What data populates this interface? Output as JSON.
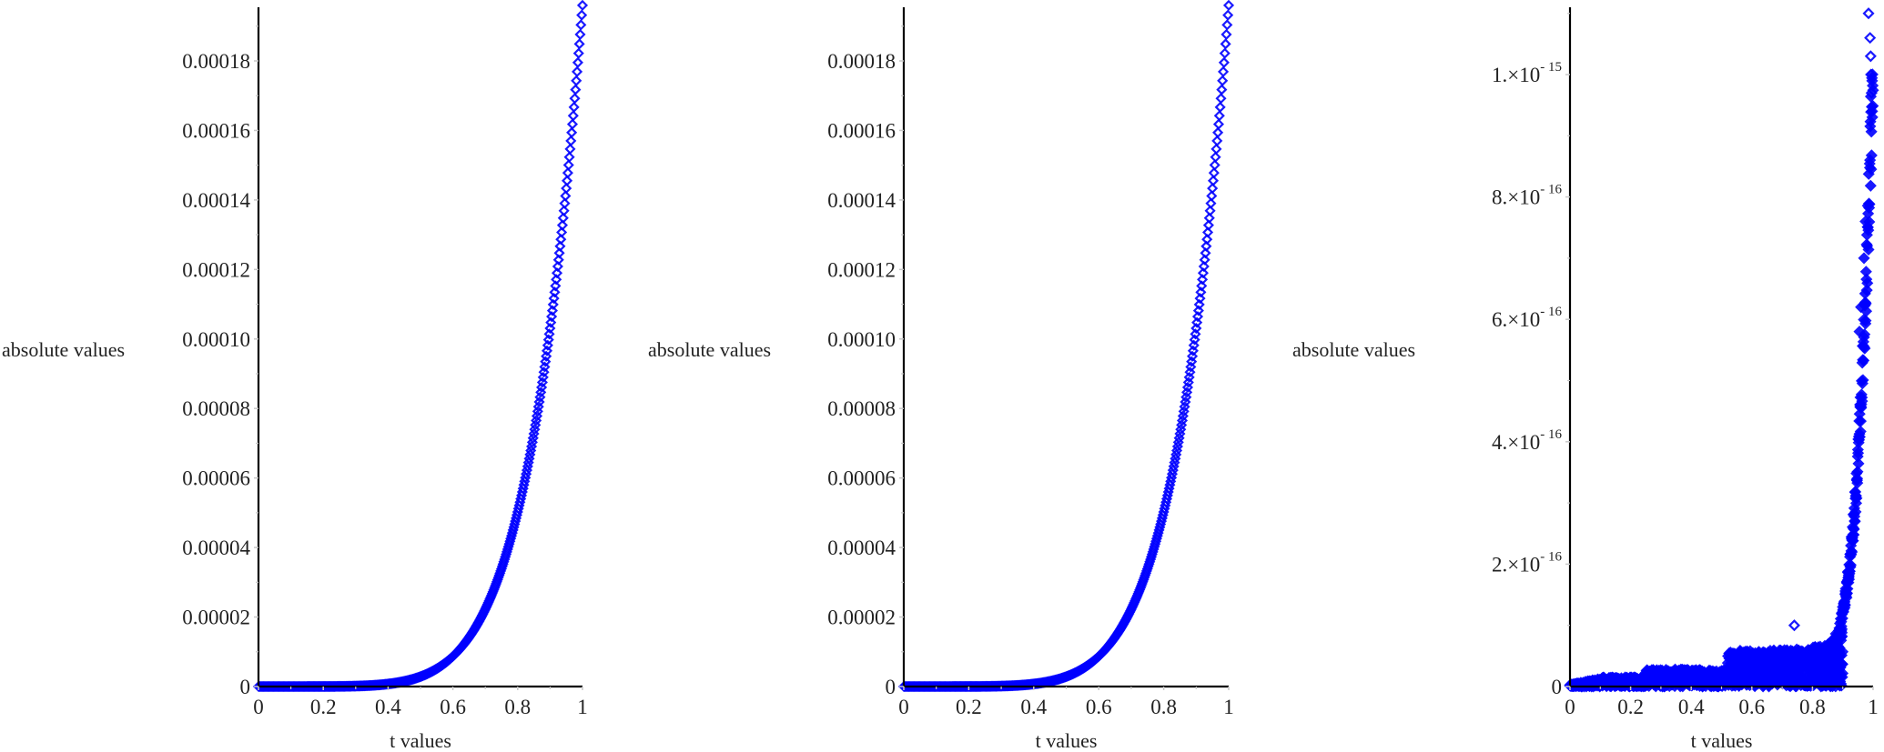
{
  "colors": {
    "marker": "#0000ff",
    "axis": "#000000",
    "minor_tick": "#c8c8c8",
    "text": "#222222"
  },
  "chart_data": [
    {
      "type": "scatter",
      "title": "",
      "xlabel": "t values",
      "ylabel": "absolute values",
      "marker": "diamond-open",
      "xlim": [
        0,
        1
      ],
      "ylim": [
        0,
        0.000196
      ],
      "grid": false,
      "x_ticks": [
        "0",
        "0.2",
        "0.4",
        "0.6",
        "0.8",
        "1"
      ],
      "y_ticks": [
        "0",
        "0.00002",
        "0.00004",
        "0.00006",
        "0.00008",
        "0.00010",
        "0.00012",
        "0.00014",
        "0.00016",
        "0.00018"
      ],
      "series": [
        {
          "name": "absolute values",
          "model": "smooth growth ~ 0.000196 * t^6",
          "x": [
            0,
            0.1,
            0.2,
            0.3,
            0.4,
            0.5,
            0.6,
            0.7,
            0.8,
            0.9,
            1.0
          ],
          "values": [
            0,
            0,
            0,
            1e-07,
            8e-07,
            3e-06,
            9e-06,
            2.3e-05,
            5.1e-05,
            0.000104,
            0.000196
          ]
        }
      ]
    },
    {
      "type": "scatter",
      "title": "",
      "xlabel": "t values",
      "ylabel": "absolute values",
      "marker": "diamond-open",
      "xlim": [
        0,
        1
      ],
      "ylim": [
        0,
        0.000196
      ],
      "grid": false,
      "x_ticks": [
        "0",
        "0.2",
        "0.4",
        "0.6",
        "0.8",
        "1"
      ],
      "y_ticks": [
        "0",
        "0.00002",
        "0.00004",
        "0.00006",
        "0.00008",
        "0.00010",
        "0.00012",
        "0.00014",
        "0.00016",
        "0.00018"
      ],
      "series": [
        {
          "name": "absolute values",
          "model": "smooth growth ~ 0.000196 * t^6",
          "x": [
            0,
            0.1,
            0.2,
            0.3,
            0.4,
            0.5,
            0.6,
            0.7,
            0.8,
            0.9,
            1.0
          ],
          "values": [
            0,
            0,
            0,
            1e-07,
            8e-07,
            3e-06,
            9e-06,
            2.3e-05,
            5.1e-05,
            0.000104,
            0.000196
          ]
        }
      ]
    },
    {
      "type": "scatter",
      "title": "",
      "xlabel": "t values",
      "ylabel": "absolute values",
      "marker": "diamond-open",
      "xlim": [
        0,
        1
      ],
      "ylim": [
        0,
        1.1e-15
      ],
      "grid": false,
      "x_ticks": [
        "0",
        "0.2",
        "0.4",
        "0.6",
        "0.8",
        "1"
      ],
      "y_ticks": [
        "0",
        "2.×10^-16",
        "4.×10^-16",
        "6.×10^-16",
        "8.×10^-16",
        "1.×10^-15"
      ],
      "series": [
        {
          "name": "absolute values",
          "model": "noisy band: envelope ~1e-17 at t=0.1, ~3e-17 at t=0.3-0.5, ~6e-17 at t=0.55-0.8, rising steeply after 0.85 to ~1.1e-15 at t=1",
          "x": [
            0,
            0.1,
            0.2,
            0.3,
            0.4,
            0.5,
            0.55,
            0.7,
            0.8,
            0.85,
            0.9,
            0.95,
            0.98,
            1.0
          ],
          "values": [
            0,
            1e-17,
            1.5e-17,
            3e-17,
            3e-17,
            3e-17,
            6e-17,
            6.5e-17,
            1e-16,
            1.5e-16,
            3.3e-16,
            6.3e-16,
            9e-16,
            1.1e-15
          ]
        }
      ]
    }
  ],
  "plots": [
    {
      "ylabel": "absolute values",
      "xlabel": "t values",
      "x_ticks": [
        "0",
        "0.2",
        "0.4",
        "0.6",
        "0.8",
        "1"
      ],
      "y_ticks": [
        "0",
        "0.00002",
        "0.00004",
        "0.00006",
        "0.00008",
        "0.00010",
        "0.00012",
        "0.00014",
        "0.00016",
        "0.00018"
      ]
    },
    {
      "ylabel": "absolute values",
      "xlabel": "t values",
      "x_ticks": [
        "0",
        "0.2",
        "0.4",
        "0.6",
        "0.8",
        "1"
      ],
      "y_ticks": [
        "0",
        "0.00002",
        "0.00004",
        "0.00006",
        "0.00008",
        "0.00010",
        "0.00012",
        "0.00014",
        "0.00016",
        "0.00018"
      ]
    },
    {
      "ylabel": "absolute values",
      "xlabel": "t values",
      "x_ticks": [
        "0",
        "0.2",
        "0.4",
        "0.6",
        "0.8",
        "1"
      ],
      "y_ticks_mantissa": [
        "0",
        "2.",
        "4.",
        "6.",
        "8.",
        "1."
      ],
      "y_ticks_exponent": [
        "",
        "-16",
        "-16",
        "-16",
        "-16",
        "-15"
      ],
      "times_sign": "×10"
    }
  ]
}
